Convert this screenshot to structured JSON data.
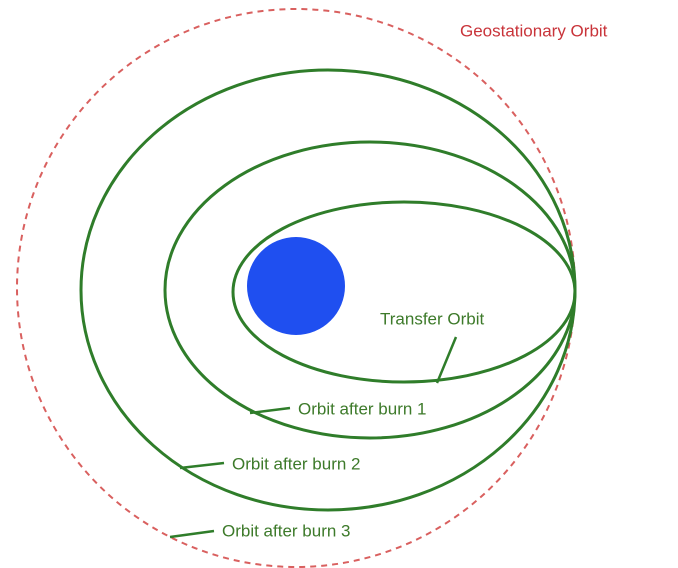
{
  "labels": {
    "geostationary": "Geostationary Orbit",
    "transfer": "Transfer Orbit",
    "burn1": "Orbit after burn 1",
    "burn2": "Orbit after burn 2",
    "burn3": "Orbit after burn 3"
  }
}
